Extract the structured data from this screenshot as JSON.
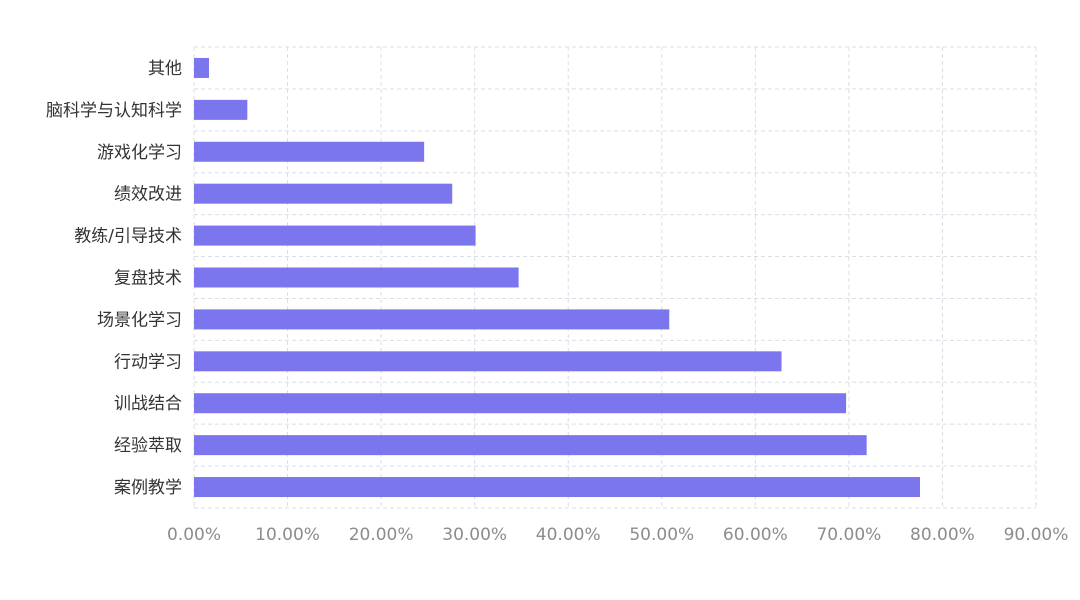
{
  "chart_data": {
    "type": "bar",
    "orientation": "horizontal",
    "categories": [
      "其他",
      "脑科学与认知科学",
      "游戏化学习",
      "绩效改进",
      "教练/引导技术",
      "复盘技术",
      "场景化学习",
      "行动学习",
      "训战结合",
      "经验萃取",
      "案例教学"
    ],
    "values": [
      1.6,
      5.7,
      24.6,
      27.6,
      30.1,
      34.7,
      50.8,
      62.8,
      69.7,
      71.9,
      77.6
    ],
    "x_ticks": [
      "0.00%",
      "10.00%",
      "20.00%",
      "30.00%",
      "40.00%",
      "50.00%",
      "60.00%",
      "70.00%",
      "80.00%",
      "90.00%"
    ],
    "xlim": [
      0,
      90
    ],
    "value_unit": "percent",
    "grid": true,
    "grid_style": "dashed",
    "legend": "none",
    "colors": {
      "bar": "#7b76ee",
      "grid": "#d9dde6",
      "category_text": "#333333",
      "tick_text": "#8c8c8c",
      "background": "#ffffff"
    }
  }
}
